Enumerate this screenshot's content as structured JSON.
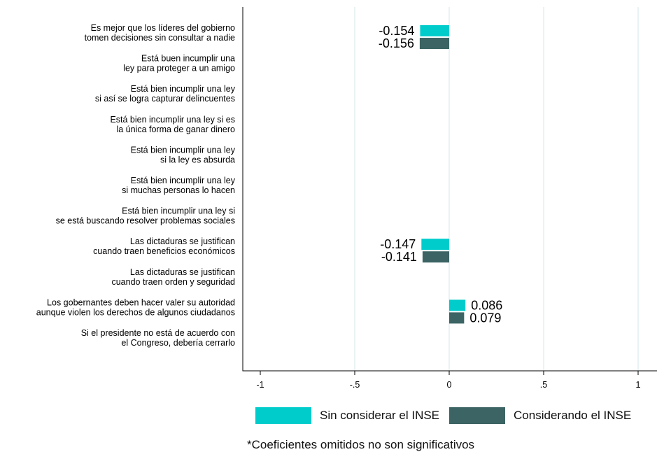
{
  "chart_data": {
    "type": "bar",
    "orientation": "horizontal",
    "categories": [
      [
        "Es mejor que los líderes del gobierno",
        "tomen decisiones sin consultar a nadie"
      ],
      [
        "Está buen incumplir una",
        "ley para proteger a un amigo"
      ],
      [
        "Está bien incumplir una ley",
        "si así se logra capturar delincuentes"
      ],
      [
        "Está bien incumplir una ley si es",
        "la única forma de ganar dinero"
      ],
      [
        "Está bien incumplir una ley",
        "si la ley es absurda"
      ],
      [
        "Está bien incumplir una ley",
        "si muchas personas lo hacen"
      ],
      [
        "Está bien incumplir una ley si",
        "se está buscando resolver problemas sociales"
      ],
      [
        "Las dictaduras se justifican",
        "cuando traen beneficios económicos"
      ],
      [
        "Las dictaduras se justifican",
        "cuando traen orden y seguridad"
      ],
      [
        "Los gobernantes deben hacer valer su autoridad",
        "aunque violen los derechos de algunos ciudadanos"
      ],
      [
        "Si el presidente no está de acuerdo con",
        "el Congreso, debería cerrarlo"
      ]
    ],
    "series": [
      {
        "name": "Sin considerar el INSE",
        "color": "#00CCCC",
        "values": [
          -0.154,
          null,
          null,
          null,
          null,
          null,
          null,
          -0.147,
          null,
          0.086,
          null
        ],
        "labels": [
          "-0.154",
          "",
          "",
          "",
          "",
          "",
          "",
          "-0.147",
          "",
          "0.086",
          ""
        ]
      },
      {
        "name": "Considerando el INSE",
        "color": "#3C6464",
        "values": [
          -0.156,
          null,
          null,
          null,
          null,
          null,
          null,
          -0.141,
          null,
          0.079,
          null
        ],
        "labels": [
          "-0.156",
          "",
          "",
          "",
          "",
          "",
          "",
          "-0.141",
          "",
          "0.079",
          ""
        ]
      }
    ],
    "xlim": [
      -1.1,
      1.1
    ],
    "xticks": [
      -1,
      -0.5,
      0,
      0.5,
      1
    ],
    "xtick_labels": [
      "-1",
      "-.5",
      "0",
      ".5",
      "1"
    ],
    "grid": "vertical",
    "grid_color": "#E4EEF0",
    "legend_position": "bottom",
    "note": "*Coeficientes omitidos no son significativos"
  }
}
